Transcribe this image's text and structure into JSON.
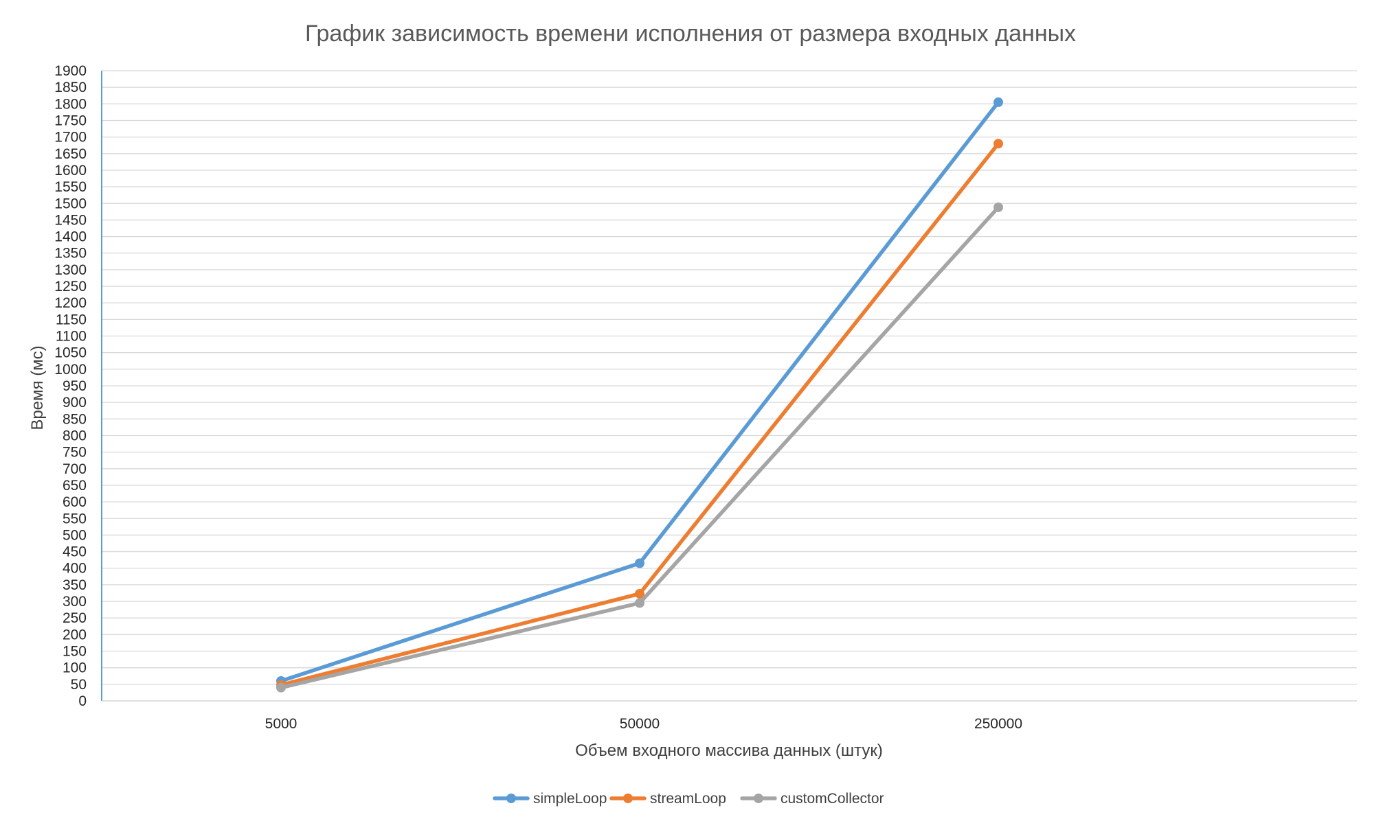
{
  "chart_data": {
    "type": "line",
    "title": "График зависимость времени исполнения от размера входных данных",
    "xlabel": "Объем входного массива данных (штук)",
    "ylabel": "Время (мс)",
    "categories": [
      "5000",
      "50000",
      "250000"
    ],
    "ylim": [
      0,
      1900
    ],
    "ytick_step": 50,
    "grid": true,
    "legend_position": "bottom",
    "series": [
      {
        "name": "simpleLoop",
        "color": "#5b9bd5",
        "values": [
          60,
          415,
          1805
        ]
      },
      {
        "name": "streamLoop",
        "color": "#ed7d31",
        "values": [
          48,
          323,
          1680
        ]
      },
      {
        "name": "customCollector",
        "color": "#a5a5a5",
        "values": [
          40,
          295,
          1488
        ]
      }
    ]
  }
}
